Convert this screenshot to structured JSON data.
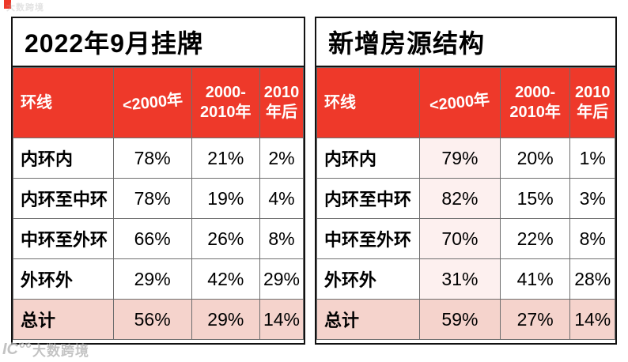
{
  "watermark": {
    "logo": "IC°°",
    "text": "大数跨境"
  },
  "colors": {
    "header_red": "#ee392a",
    "total_row_pink": "#f5d3cc",
    "highlight_col_pink": "#fdf0ef"
  },
  "tables": [
    {
      "title": "2022年9月挂牌",
      "columns": [
        "环线",
        "<2000年",
        "2000-2010年",
        "2010年后"
      ],
      "rows": [
        {
          "label": "内环内",
          "values": [
            "78%",
            "21%",
            "2%"
          ]
        },
        {
          "label": "内环至中环",
          "values": [
            "78%",
            "19%",
            "4%"
          ]
        },
        {
          "label": "中环至外环",
          "values": [
            "66%",
            "26%",
            "8%"
          ]
        },
        {
          "label": "外环外",
          "values": [
            "29%",
            "42%",
            "29%"
          ]
        },
        {
          "label": "总计",
          "values": [
            "56%",
            "29%",
            "14%"
          ]
        }
      ]
    },
    {
      "title": "新增房源结构",
      "columns": [
        "环线",
        "<2000年",
        "2000-2010年",
        "2010年后"
      ],
      "rows": [
        {
          "label": "内环内",
          "values": [
            "79%",
            "20%",
            "1%"
          ]
        },
        {
          "label": "内环至中环",
          "values": [
            "82%",
            "15%",
            "3%"
          ]
        },
        {
          "label": "中环至外环",
          "values": [
            "70%",
            "22%",
            "8%"
          ]
        },
        {
          "label": "外环外",
          "values": [
            "31%",
            "41%",
            "28%"
          ]
        },
        {
          "label": "总计",
          "values": [
            "59%",
            "27%",
            "14%"
          ]
        }
      ]
    }
  ]
}
